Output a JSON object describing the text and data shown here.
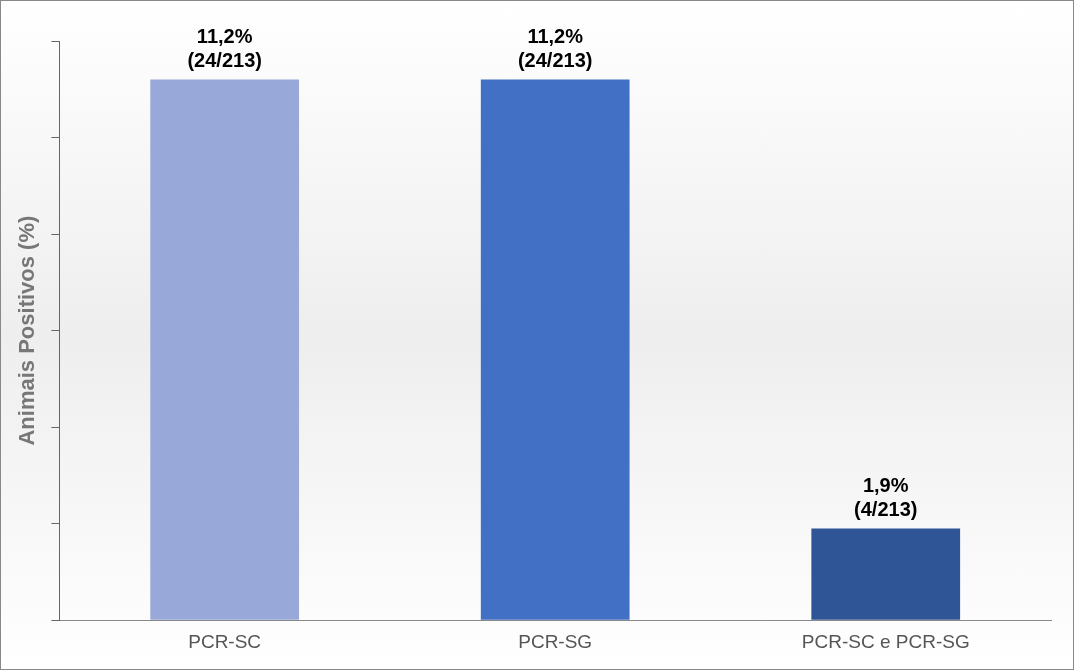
{
  "chart_data": {
    "type": "bar",
    "ylabel": "Animais Positivos (%)",
    "categories": [
      "PCR-SC",
      "PCR-SG",
      "PCR-SC e PCR-SG"
    ],
    "values": [
      11.2,
      11.2,
      1.9
    ],
    "colors": [
      "#98a9d9",
      "#4170c4",
      "#2f5597"
    ],
    "value_labels": [
      "11,2%\n(24/213)",
      "11,2%\n(24/213)",
      "1,9%\n(4/213)"
    ],
    "ylim": [
      0,
      12
    ],
    "yticks": [
      {
        "value": 0,
        "label": null
      },
      {
        "value": 2,
        "label": null
      },
      {
        "value": 4,
        "label": null
      },
      {
        "value": 6,
        "label": null
      },
      {
        "value": 8,
        "label": null
      },
      {
        "value": 10,
        "label": null
      },
      {
        "value": 12,
        "label": null
      }
    ],
    "tick_labels": "x",
    "grid": false,
    "legend": false
  }
}
